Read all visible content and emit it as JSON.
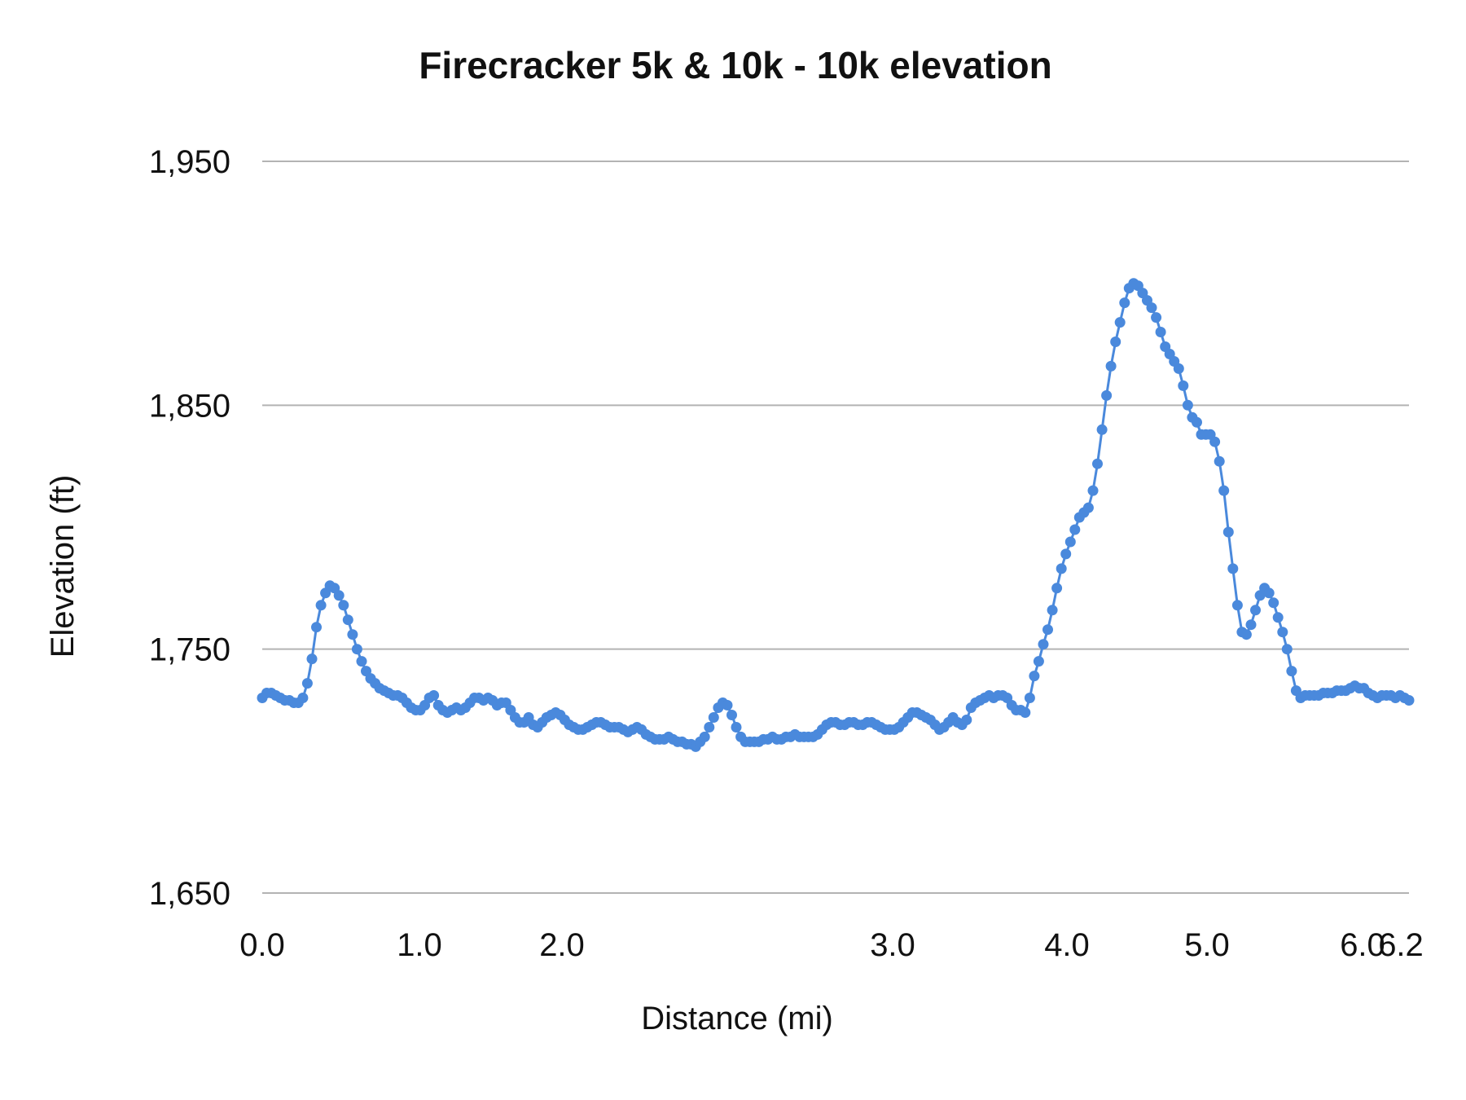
{
  "chart_data": {
    "type": "line",
    "title": "Firecracker 5k & 10k - 10k elevation",
    "xlabel": "Distance (mi)",
    "ylabel": "Elevation (ft)",
    "ylim": [
      1650,
      1950
    ],
    "yticks": [
      1650,
      1750,
      1850,
      1950
    ],
    "ytick_labels": [
      "1,650",
      "1,750",
      "1,850",
      "1,950"
    ],
    "xtick_labels": [
      "0.0",
      "1.0",
      "2.0",
      "3.0",
      "4.0",
      "5.0",
      "6.0",
      "6.2"
    ],
    "grid": true,
    "legend": "none",
    "colors": {
      "series": "#4a89dc",
      "grid": "#b3b3b3",
      "text": "#111111"
    },
    "series": [
      {
        "values": [
          1730,
          1732,
          1732,
          1731,
          1730,
          1729,
          1729,
          1728,
          1728,
          1730,
          1736,
          1746,
          1759,
          1768,
          1773,
          1776,
          1775,
          1772,
          1768,
          1762,
          1756,
          1750,
          1745,
          1741,
          1738,
          1736,
          1734,
          1733,
          1732,
          1731,
          1731,
          1730,
          1728,
          1726,
          1725,
          1725,
          1727,
          1730,
          1731,
          1727,
          1725,
          1724,
          1725,
          1726,
          1725,
          1726,
          1728,
          1730,
          1730,
          1729,
          1730,
          1729,
          1727,
          1728,
          1728,
          1725,
          1722,
          1720,
          1720,
          1722,
          1719,
          1718,
          1720,
          1722,
          1723,
          1724,
          1723,
          1721,
          1719,
          1718,
          1717,
          1717,
          1718,
          1719,
          1720,
          1720,
          1719,
          1718,
          1718,
          1718,
          1717,
          1716,
          1717,
          1718,
          1717,
          1715,
          1714,
          1713,
          1713,
          1713,
          1714,
          1713,
          1712,
          1712,
          1711,
          1711,
          1710,
          1712,
          1714,
          1718,
          1722,
          1726,
          1728,
          1727,
          1723,
          1718,
          1714,
          1712,
          1712,
          1712,
          1712,
          1713,
          1713,
          1714,
          1713,
          1713,
          1714,
          1714,
          1715,
          1714,
          1714,
          1714,
          1714,
          1715,
          1717,
          1719,
          1720,
          1720,
          1719,
          1719,
          1720,
          1720,
          1719,
          1719,
          1720,
          1720,
          1719,
          1718,
          1717,
          1717,
          1717,
          1718,
          1720,
          1722,
          1724,
          1724,
          1723,
          1722,
          1721,
          1719,
          1717,
          1718,
          1720,
          1722,
          1720,
          1719,
          1721,
          1726,
          1728,
          1729,
          1730,
          1731,
          1730,
          1731,
          1731,
          1730,
          1727,
          1725,
          1725,
          1724,
          1730,
          1739,
          1745,
          1752,
          1758,
          1766,
          1775,
          1783,
          1789,
          1794,
          1799,
          1804,
          1806,
          1808,
          1815,
          1826,
          1840,
          1854,
          1866,
          1876,
          1884,
          1892,
          1898,
          1900,
          1899,
          1896,
          1893,
          1890,
          1886,
          1880,
          1874,
          1871,
          1868,
          1865,
          1858,
          1850,
          1845,
          1843,
          1838,
          1838,
          1838,
          1835,
          1827,
          1815,
          1798,
          1783,
          1768,
          1757,
          1756,
          1760,
          1766,
          1772,
          1775,
          1773,
          1769,
          1763,
          1757,
          1750,
          1741,
          1733,
          1730,
          1731,
          1731,
          1731,
          1731,
          1732,
          1732,
          1732,
          1733,
          1733,
          1733,
          1734,
          1735,
          1734,
          1734,
          1732,
          1731,
          1730,
          1731,
          1731,
          1731,
          1730,
          1731,
          1730,
          1729
        ]
      }
    ]
  }
}
